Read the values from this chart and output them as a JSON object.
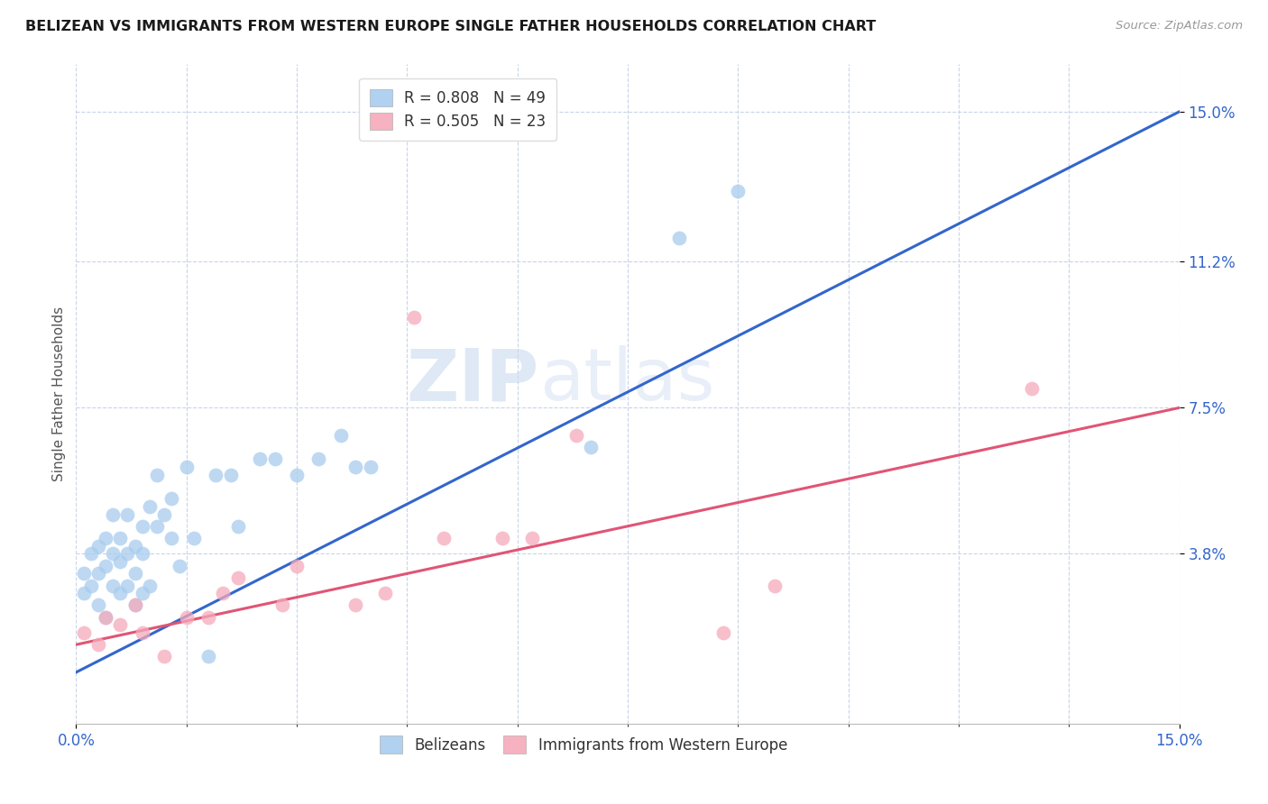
{
  "title": "BELIZEAN VS IMMIGRANTS FROM WESTERN EUROPE SINGLE FATHER HOUSEHOLDS CORRELATION CHART",
  "source": "Source: ZipAtlas.com",
  "ylabel": "Single Father Households",
  "xlim": [
    0.0,
    0.15
  ],
  "ylim": [
    -0.005,
    0.162
  ],
  "ytick_labels": [
    "3.8%",
    "7.5%",
    "11.2%",
    "15.0%"
  ],
  "ytick_values": [
    0.038,
    0.075,
    0.112,
    0.15
  ],
  "series1_name": "Belizeans",
  "series1_R": "0.808",
  "series1_N": "49",
  "series1_color": "#A8CCEE",
  "series1_line_color": "#3366CC",
  "series2_name": "Immigrants from Western Europe",
  "series2_R": "0.505",
  "series2_N": "23",
  "series2_color": "#F5AABB",
  "series2_line_color": "#E05575",
  "background_color": "#FFFFFF",
  "grid_color": "#C8D4E8",
  "watermark_zip": "ZIP",
  "watermark_atlas": "atlas",
  "series1_x": [
    0.001,
    0.001,
    0.002,
    0.002,
    0.003,
    0.003,
    0.003,
    0.004,
    0.004,
    0.004,
    0.005,
    0.005,
    0.005,
    0.006,
    0.006,
    0.006,
    0.007,
    0.007,
    0.007,
    0.008,
    0.008,
    0.008,
    0.009,
    0.009,
    0.009,
    0.01,
    0.01,
    0.011,
    0.011,
    0.012,
    0.013,
    0.013,
    0.014,
    0.015,
    0.016,
    0.018,
    0.019,
    0.021,
    0.022,
    0.025,
    0.027,
    0.03,
    0.033,
    0.036,
    0.038,
    0.04,
    0.07,
    0.082,
    0.09
  ],
  "series1_y": [
    0.028,
    0.033,
    0.03,
    0.038,
    0.025,
    0.033,
    0.04,
    0.022,
    0.035,
    0.042,
    0.03,
    0.038,
    0.048,
    0.036,
    0.042,
    0.028,
    0.03,
    0.038,
    0.048,
    0.033,
    0.04,
    0.025,
    0.028,
    0.038,
    0.045,
    0.03,
    0.05,
    0.058,
    0.045,
    0.048,
    0.042,
    0.052,
    0.035,
    0.06,
    0.042,
    0.012,
    0.058,
    0.058,
    0.045,
    0.062,
    0.062,
    0.058,
    0.062,
    0.068,
    0.06,
    0.06,
    0.065,
    0.118,
    0.13
  ],
  "series2_x": [
    0.001,
    0.003,
    0.004,
    0.006,
    0.008,
    0.009,
    0.012,
    0.015,
    0.018,
    0.02,
    0.022,
    0.028,
    0.03,
    0.038,
    0.042,
    0.046,
    0.05,
    0.058,
    0.062,
    0.068,
    0.088,
    0.095,
    0.13
  ],
  "series2_y": [
    0.018,
    0.015,
    0.022,
    0.02,
    0.025,
    0.018,
    0.012,
    0.022,
    0.022,
    0.028,
    0.032,
    0.025,
    0.035,
    0.025,
    0.028,
    0.098,
    0.042,
    0.042,
    0.042,
    0.068,
    0.018,
    0.03,
    0.08
  ],
  "blue_line_x": [
    0.0,
    0.15
  ],
  "blue_line_y": [
    0.008,
    0.15
  ],
  "pink_line_x": [
    0.0,
    0.15
  ],
  "pink_line_y": [
    0.015,
    0.075
  ]
}
